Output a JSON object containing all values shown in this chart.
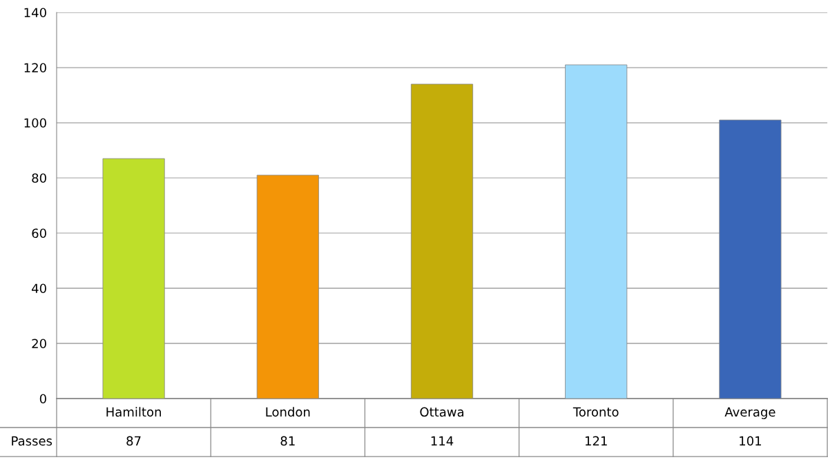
{
  "chart_data": {
    "type": "bar",
    "categories": [
      "Hamilton",
      "London",
      "Ottawa",
      "Toronto",
      "Average"
    ],
    "series": [
      {
        "name": "Passes",
        "colors": [
          "#bedf2a",
          "#f39507",
          "#c4ad0a",
          "#9cdbfc",
          "#3966b8"
        ],
        "values": [
          87,
          81,
          114,
          121,
          101
        ]
      }
    ],
    "ylim": [
      0,
      140
    ],
    "yticks": [
      0,
      20,
      40,
      60,
      80,
      100,
      120,
      140
    ],
    "grid": "y",
    "data_labels": true,
    "legend": false
  }
}
